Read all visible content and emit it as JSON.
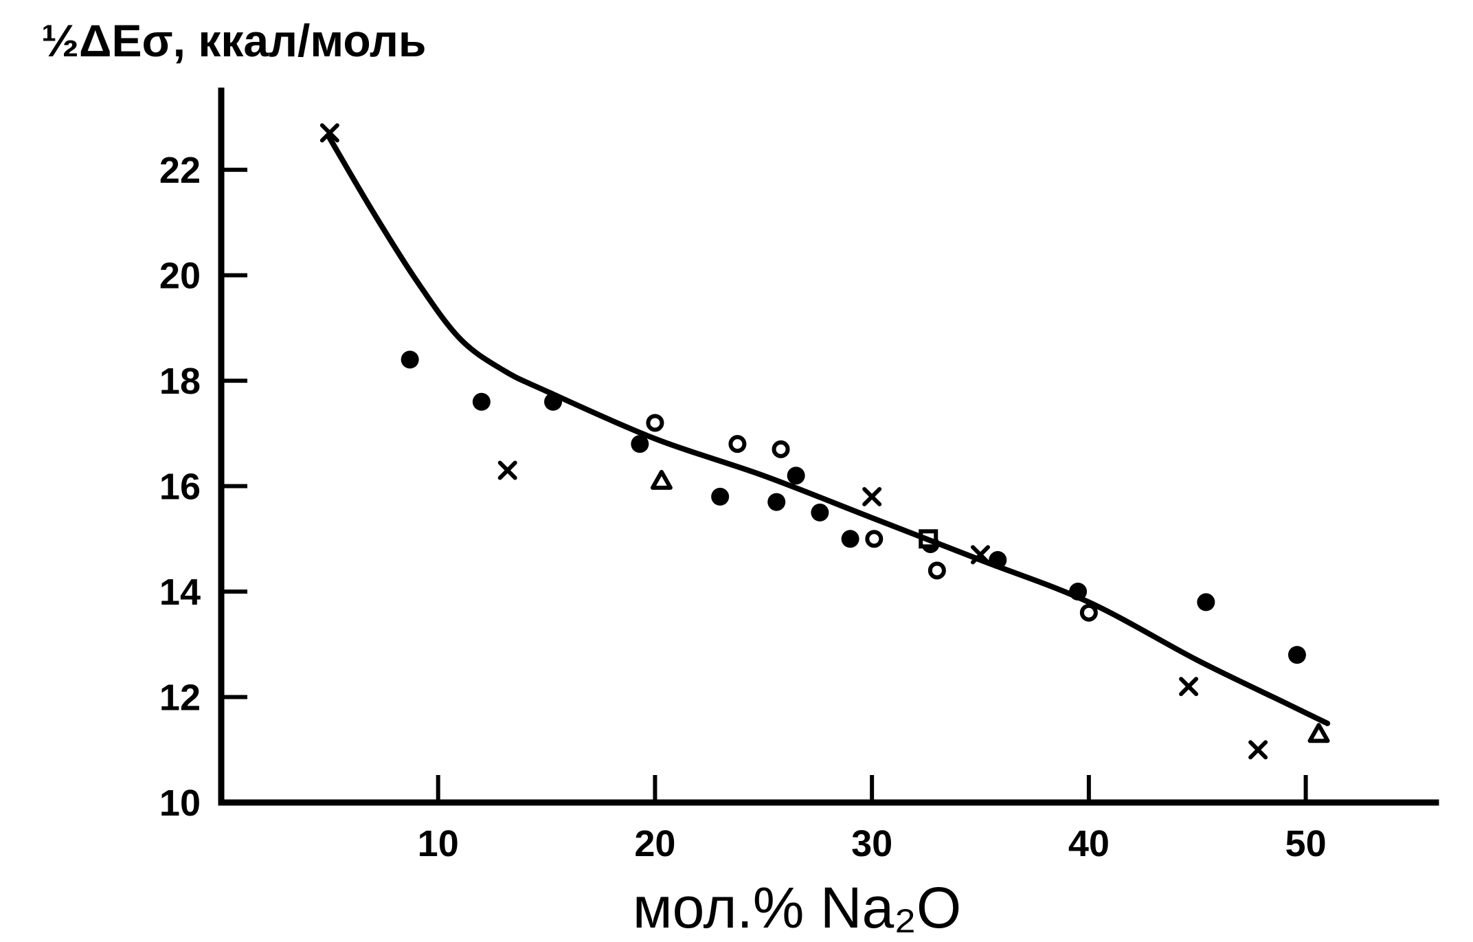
{
  "chart_data": {
    "type": "scatter",
    "ylabel": "½ΔEσ, ккал/моль",
    "xlabel": "мол.% Na₂O",
    "xlim": [
      0,
      56
    ],
    "ylim": [
      10,
      23.5
    ],
    "xticks": [
      10,
      20,
      30,
      40,
      50
    ],
    "yticks": [
      10,
      12,
      14,
      16,
      18,
      20,
      22
    ],
    "grid": false,
    "legend": "none",
    "series": [
      {
        "marker": "filled-circle",
        "points": [
          [
            8.7,
            18.4
          ],
          [
            12,
            17.6
          ],
          [
            15.3,
            17.6
          ],
          [
            19.3,
            16.8
          ],
          [
            23,
            15.8
          ],
          [
            25.6,
            15.7
          ],
          [
            26.5,
            16.2
          ],
          [
            27.6,
            15.5
          ],
          [
            29,
            15
          ],
          [
            32.7,
            14.9
          ],
          [
            35.8,
            14.6
          ],
          [
            39.5,
            14.0
          ],
          [
            45.4,
            13.8
          ],
          [
            49.6,
            12.8
          ]
        ]
      },
      {
        "marker": "open-circle",
        "points": [
          [
            20,
            17.2
          ],
          [
            23.8,
            16.8
          ],
          [
            25.8,
            16.7
          ],
          [
            30.1,
            15
          ],
          [
            33,
            14.4
          ],
          [
            40,
            13.6
          ]
        ]
      },
      {
        "marker": "cross",
        "points": [
          [
            5,
            22.7
          ],
          [
            13.2,
            16.3
          ],
          [
            30,
            15.8
          ],
          [
            35,
            14.7
          ],
          [
            44.6,
            12.2
          ],
          [
            47.8,
            11
          ]
        ]
      },
      {
        "marker": "open-triangle",
        "points": [
          [
            20.3,
            16.1
          ],
          [
            50.6,
            11.3
          ]
        ]
      },
      {
        "marker": "open-square",
        "points": [
          [
            32.6,
            15
          ]
        ]
      },
      {
        "marker": "line",
        "points": [
          [
            5,
            22.6
          ],
          [
            7,
            21.2
          ],
          [
            9,
            19.9
          ],
          [
            11,
            18.8
          ],
          [
            13,
            18.2
          ],
          [
            15,
            17.8
          ],
          [
            20,
            16.9
          ],
          [
            25,
            16.2
          ],
          [
            30,
            15.4
          ],
          [
            35,
            14.6
          ],
          [
            40,
            13.8
          ],
          [
            45,
            12.7
          ],
          [
            49,
            11.9
          ],
          [
            51,
            11.5
          ]
        ]
      }
    ]
  }
}
